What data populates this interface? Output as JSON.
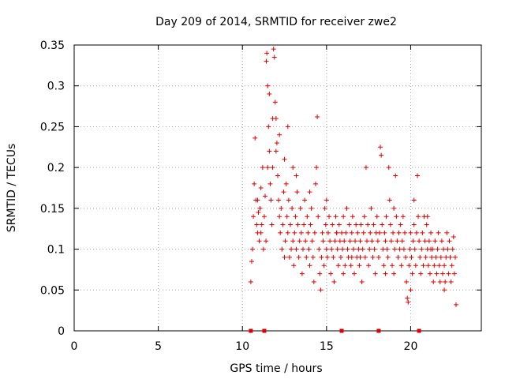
{
  "chart_data": {
    "type": "scatter",
    "title": "Day 209 of 2014, SRMTID for receiver zwe2",
    "xlabel": "GPS time / hours",
    "ylabel": "SRMTID / TECUs",
    "xlim": [
      0,
      24.2
    ],
    "ylim": [
      0,
      0.35
    ],
    "xticks": [
      0,
      5,
      10,
      15,
      20
    ],
    "xtick_labels": [
      "0",
      "5",
      "10",
      "15",
      "20"
    ],
    "yticks": [
      0,
      0.05,
      0.1,
      0.15,
      0.2,
      0.25,
      0.3,
      0.35
    ],
    "ytick_labels": [
      "0",
      "0.05",
      "0.1",
      "0.15",
      "0.2",
      "0.25",
      "0.3",
      "0.35"
    ],
    "grid": true,
    "legend": null,
    "marker": "plus",
    "color": "#dd0000",
    "baseline_markers_x": [
      10.5,
      11.3,
      15.9,
      18.1,
      20.5
    ],
    "series": [
      {
        "name": "SRMTID",
        "points": [
          [
            10.5,
            0.06
          ],
          [
            10.55,
            0.085
          ],
          [
            10.6,
            0.1
          ],
          [
            10.65,
            0.14
          ],
          [
            10.7,
            0.18
          ],
          [
            10.75,
            0.236
          ],
          [
            10.8,
            0.16
          ],
          [
            10.85,
            0.13
          ],
          [
            10.9,
            0.12
          ],
          [
            10.95,
            0.145
          ],
          [
            11.0,
            0.11
          ],
          [
            11.05,
            0.15
          ],
          [
            11.1,
            0.175
          ],
          [
            11.15,
            0.13
          ],
          [
            11.2,
            0.2
          ],
          [
            11.25,
            0.1
          ],
          [
            11.3,
            0.14
          ],
          [
            11.35,
            0.165
          ],
          [
            11.4,
            0.11
          ],
          [
            11.42,
            0.33
          ],
          [
            11.45,
            0.34
          ],
          [
            11.5,
            0.3
          ],
          [
            11.55,
            0.25
          ],
          [
            11.6,
            0.22
          ],
          [
            11.65,
            0.18
          ],
          [
            11.7,
            0.16
          ],
          [
            11.75,
            0.13
          ],
          [
            11.8,
            0.2
          ],
          [
            11.85,
            0.345
          ],
          [
            11.9,
            0.335
          ],
          [
            11.95,
            0.28
          ],
          [
            12.0,
            0.26
          ],
          [
            12.05,
            0.23
          ],
          [
            12.1,
            0.19
          ],
          [
            12.15,
            0.16
          ],
          [
            12.2,
            0.14
          ],
          [
            12.25,
            0.12
          ],
          [
            12.3,
            0.15
          ],
          [
            12.35,
            0.1
          ],
          [
            12.4,
            0.13
          ],
          [
            12.45,
            0.17
          ],
          [
            12.5,
            0.09
          ],
          [
            12.55,
            0.11
          ],
          [
            12.6,
            0.18
          ],
          [
            12.65,
            0.14
          ],
          [
            12.7,
            0.12
          ],
          [
            12.75,
            0.16
          ],
          [
            12.8,
            0.09
          ],
          [
            12.85,
            0.13
          ],
          [
            12.9,
            0.1
          ],
          [
            12.95,
            0.15
          ],
          [
            13.0,
            0.11
          ],
          [
            13.05,
            0.08
          ],
          [
            13.1,
            0.12
          ],
          [
            13.15,
            0.14
          ],
          [
            13.2,
            0.1
          ],
          [
            13.25,
            0.17
          ],
          [
            13.3,
            0.13
          ],
          [
            13.35,
            0.09
          ],
          [
            13.4,
            0.11
          ],
          [
            13.45,
            0.15
          ],
          [
            13.5,
            0.12
          ],
          [
            13.55,
            0.07
          ],
          [
            13.6,
            0.1
          ],
          [
            13.65,
            0.13
          ],
          [
            13.7,
            0.16
          ],
          [
            13.75,
            0.11
          ],
          [
            13.8,
            0.09
          ],
          [
            13.85,
            0.14
          ],
          [
            13.9,
            0.12
          ],
          [
            13.95,
            0.1
          ],
          [
            14.0,
            0.08
          ],
          [
            14.05,
            0.13
          ],
          [
            14.1,
            0.15
          ],
          [
            14.15,
            0.11
          ],
          [
            14.2,
            0.09
          ],
          [
            14.25,
            0.06
          ],
          [
            14.3,
            0.12
          ],
          [
            14.35,
            0.18
          ],
          [
            14.4,
            0.2
          ],
          [
            14.45,
            0.262
          ],
          [
            14.5,
            0.14
          ],
          [
            14.55,
            0.1
          ],
          [
            14.6,
            0.07
          ],
          [
            14.65,
            0.05
          ],
          [
            14.7,
            0.09
          ],
          [
            14.75,
            0.12
          ],
          [
            14.8,
            0.11
          ],
          [
            14.85,
            0.08
          ],
          [
            14.9,
            0.15
          ],
          [
            14.95,
            0.13
          ],
          [
            15.0,
            0.1
          ],
          [
            15.05,
            0.09
          ],
          [
            15.1,
            0.12
          ],
          [
            15.15,
            0.14
          ],
          [
            15.2,
            0.11
          ],
          [
            15.25,
            0.07
          ],
          [
            15.3,
            0.1
          ],
          [
            15.35,
            0.13
          ],
          [
            15.4,
            0.09
          ],
          [
            15.45,
            0.06
          ],
          [
            15.5,
            0.11
          ],
          [
            15.55,
            0.14
          ],
          [
            15.6,
            0.12
          ],
          [
            15.65,
            0.1
          ],
          [
            15.7,
            0.08
          ],
          [
            15.75,
            0.13
          ],
          [
            15.8,
            0.11
          ],
          [
            15.85,
            0.09
          ],
          [
            15.9,
            0.12
          ],
          [
            15.95,
            0.1
          ],
          [
            16.0,
            0.14
          ],
          [
            16.05,
            0.11
          ],
          [
            16.1,
            0.08
          ],
          [
            16.15,
            0.12
          ],
          [
            16.2,
            0.15
          ],
          [
            16.25,
            0.1
          ],
          [
            16.3,
            0.09
          ],
          [
            16.35,
            0.13
          ],
          [
            16.4,
            0.11
          ],
          [
            16.45,
            0.08
          ],
          [
            16.5,
            0.12
          ],
          [
            16.55,
            0.14
          ],
          [
            16.6,
            0.1
          ],
          [
            16.65,
            0.07
          ],
          [
            16.7,
            0.11
          ],
          [
            16.75,
            0.13
          ],
          [
            16.8,
            0.09
          ],
          [
            16.85,
            0.12
          ],
          [
            16.9,
            0.1
          ],
          [
            16.95,
            0.08
          ],
          [
            17.0,
            0.11
          ],
          [
            17.05,
            0.13
          ],
          [
            17.1,
            0.06
          ],
          [
            17.15,
            0.1
          ],
          [
            17.2,
            0.12
          ],
          [
            17.25,
            0.14
          ],
          [
            17.3,
            0.09
          ],
          [
            17.35,
            0.2
          ],
          [
            17.4,
            0.11
          ],
          [
            17.45,
            0.13
          ],
          [
            17.5,
            0.08
          ],
          [
            17.55,
            0.1
          ],
          [
            17.6,
            0.12
          ],
          [
            17.65,
            0.15
          ],
          [
            17.7,
            0.11
          ],
          [
            17.75,
            0.09
          ],
          [
            17.8,
            0.13
          ],
          [
            17.85,
            0.1
          ],
          [
            17.9,
            0.07
          ],
          [
            17.95,
            0.12
          ],
          [
            18.0,
            0.14
          ],
          [
            18.05,
            0.11
          ],
          [
            18.1,
            0.09
          ],
          [
            18.15,
            0.12
          ],
          [
            18.2,
            0.225
          ],
          [
            18.25,
            0.215
          ],
          [
            18.3,
            0.13
          ],
          [
            18.35,
            0.1
          ],
          [
            18.4,
            0.08
          ],
          [
            18.45,
            0.12
          ],
          [
            18.5,
            0.11
          ],
          [
            18.55,
            0.14
          ],
          [
            18.6,
            0.1
          ],
          [
            18.65,
            0.09
          ],
          [
            18.7,
            0.2
          ],
          [
            18.75,
            0.16
          ],
          [
            18.8,
            0.13
          ],
          [
            18.85,
            0.11
          ],
          [
            18.9,
            0.08
          ],
          [
            18.95,
            0.12
          ],
          [
            19.0,
            0.15
          ],
          [
            19.05,
            0.1
          ],
          [
            19.1,
            0.19
          ],
          [
            19.15,
            0.14
          ],
          [
            19.2,
            0.11
          ],
          [
            19.25,
            0.09
          ],
          [
            19.3,
            0.12
          ],
          [
            19.35,
            0.1
          ],
          [
            19.4,
            0.13
          ],
          [
            19.45,
            0.08
          ],
          [
            19.5,
            0.11
          ],
          [
            19.55,
            0.14
          ],
          [
            19.6,
            0.1
          ],
          [
            19.65,
            0.12
          ],
          [
            19.7,
            0.09
          ],
          [
            19.75,
            0.06
          ],
          [
            19.8,
            0.04
          ],
          [
            19.85,
            0.035
          ],
          [
            19.9,
            0.08
          ],
          [
            19.95,
            0.1
          ],
          [
            20.0,
            0.12
          ],
          [
            20.05,
            0.09
          ],
          [
            20.1,
            0.07
          ],
          [
            20.15,
            0.11
          ],
          [
            20.2,
            0.13
          ],
          [
            20.25,
            0.1
          ],
          [
            20.3,
            0.08
          ],
          [
            20.35,
            0.12
          ],
          [
            20.4,
            0.19
          ],
          [
            20.45,
            0.14
          ],
          [
            20.5,
            0.11
          ],
          [
            20.55,
            0.09
          ],
          [
            20.6,
            0.07
          ],
          [
            20.65,
            0.1
          ],
          [
            20.7,
            0.12
          ],
          [
            20.75,
            0.08
          ],
          [
            20.8,
            0.14
          ],
          [
            20.85,
            0.11
          ],
          [
            20.9,
            0.09
          ],
          [
            20.95,
            0.13
          ],
          [
            21.0,
            0.1
          ],
          [
            21.05,
            0.08
          ],
          [
            21.1,
            0.11
          ],
          [
            21.15,
            0.07
          ],
          [
            21.2,
            0.12
          ],
          [
            21.25,
            0.09
          ],
          [
            21.3,
            0.1
          ],
          [
            21.35,
            0.06
          ],
          [
            21.4,
            0.08
          ],
          [
            21.45,
            0.11
          ],
          [
            21.5,
            0.09
          ],
          [
            21.55,
            0.07
          ],
          [
            21.6,
            0.1
          ],
          [
            21.65,
            0.12
          ],
          [
            21.7,
            0.08
          ],
          [
            21.75,
            0.06
          ],
          [
            21.8,
            0.09
          ],
          [
            21.85,
            0.11
          ],
          [
            21.9,
            0.07
          ],
          [
            21.95,
            0.1
          ],
          [
            22.0,
            0.08
          ],
          [
            22.05,
            0.06
          ],
          [
            22.1,
            0.09
          ],
          [
            22.15,
            0.12
          ],
          [
            22.2,
            0.1
          ],
          [
            22.25,
            0.07
          ],
          [
            22.3,
            0.11
          ],
          [
            22.35,
            0.09
          ],
          [
            22.4,
            0.06
          ],
          [
            22.45,
            0.08
          ],
          [
            22.5,
            0.1
          ],
          [
            22.55,
            0.115
          ],
          [
            22.6,
            0.07
          ],
          [
            22.65,
            0.09
          ],
          [
            22.7,
            0.032
          ],
          [
            12.0,
            0.22
          ],
          [
            12.2,
            0.24
          ],
          [
            11.6,
            0.29
          ],
          [
            12.5,
            0.21
          ],
          [
            13.2,
            0.19
          ],
          [
            15.6,
            0.12
          ],
          [
            16.5,
            0.09
          ],
          [
            18.5,
            0.07
          ],
          [
            20.0,
            0.05
          ],
          [
            21.0,
            0.14
          ],
          [
            10.9,
            0.16
          ],
          [
            11.1,
            0.12
          ],
          [
            13.0,
            0.2
          ],
          [
            14.0,
            0.17
          ],
          [
            17.0,
            0.09
          ],
          [
            19.0,
            0.07
          ],
          [
            20.2,
            0.16
          ],
          [
            21.2,
            0.1
          ],
          [
            22.0,
            0.05
          ],
          [
            16.0,
            0.07
          ],
          [
            15.0,
            0.16
          ],
          [
            12.7,
            0.25
          ],
          [
            11.5,
            0.2
          ],
          [
            11.8,
            0.26
          ]
        ]
      }
    ]
  }
}
